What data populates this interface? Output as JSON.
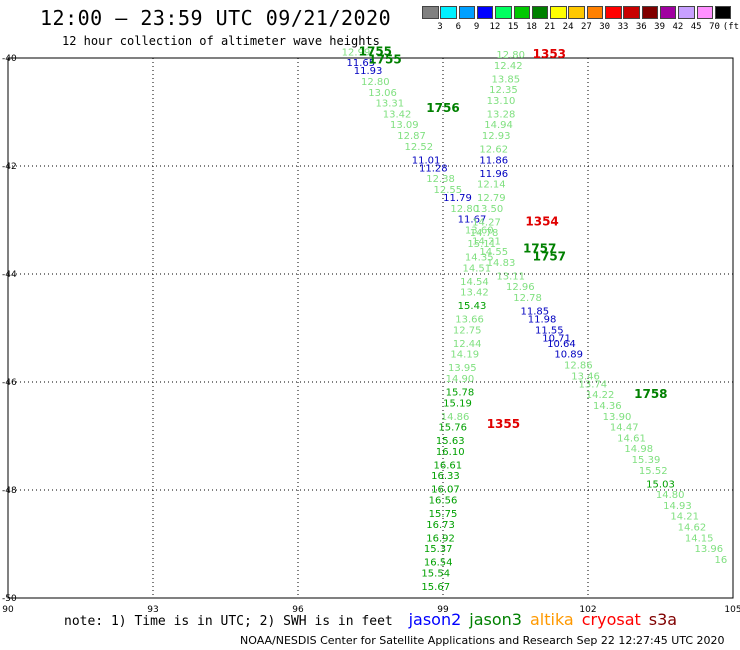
{
  "title": "12:00 — 23:59 UTC 09/21/2020",
  "subtitle": "12 hour collection of altimeter wave heights",
  "colorbar": {
    "labels": [
      "3",
      "6",
      "9",
      "12",
      "15",
      "18",
      "21",
      "24",
      "27",
      "30",
      "33",
      "36",
      "39",
      "42",
      "45",
      "70",
      "(ft)"
    ],
    "colors": [
      "#808080",
      "#00f0ff",
      "#00a0ff",
      "#0000ff",
      "#00ff60",
      "#00c800",
      "#008000",
      "#ffff00",
      "#ffc800",
      "#ff8000",
      "#ff0000",
      "#c80000",
      "#800000",
      "#a000a0",
      "#c8a0ff",
      "#ff90ff",
      "#000000"
    ]
  },
  "map": {
    "lon_labels": [
      "90",
      "93",
      "96",
      "99",
      "102",
      "105"
    ],
    "lat_labels": [
      "-40",
      "-42",
      "-44",
      "-46",
      "-48",
      "-50"
    ],
    "grid": true,
    "extent": {
      "lon": [
        90,
        105
      ],
      "lat": [
        -50,
        -40
      ]
    },
    "swh_colors": {
      "light_green": "#80e080",
      "green": "#00a000",
      "dark_blue": "#0000c0",
      "red": "#e00000",
      "dark_green": "#008000"
    }
  },
  "tracks": [
    {
      "satellite": "jason3",
      "time_labels": [
        {
          "text": "1755",
          "lon": 97.6,
          "lat": -39.95,
          "color": "#008000"
        },
        {
          "text": "1755",
          "lon": 97.8,
          "lat": -40.1,
          "color": "#008000"
        },
        {
          "text": "1756",
          "lon": 99.0,
          "lat": -41.0,
          "color": "#008000"
        },
        {
          "text": "1757",
          "lon": 101.0,
          "lat": -43.6,
          "color": "#008000"
        },
        {
          "text": "1757",
          "lon": 101.2,
          "lat": -43.75,
          "color": "#008000"
        },
        {
          "text": "1758",
          "lon": 103.3,
          "lat": -46.3,
          "color": "#008000"
        }
      ],
      "swh": [
        {
          "v": "12.99",
          "lon": 97.2,
          "lat": -39.95,
          "c": "#80e080"
        },
        {
          "v": "11.65",
          "lon": 97.3,
          "lat": -40.15,
          "c": "#0000c0"
        },
        {
          "v": "11.93",
          "lon": 97.45,
          "lat": -40.3,
          "c": "#0000c0"
        },
        {
          "v": "12.80",
          "lon": 97.6,
          "lat": -40.5,
          "c": "#80e080"
        },
        {
          "v": "13.06",
          "lon": 97.75,
          "lat": -40.7,
          "c": "#80e080"
        },
        {
          "v": "13.31",
          "lon": 97.9,
          "lat": -40.9,
          "c": "#80e080"
        },
        {
          "v": "13.42",
          "lon": 98.05,
          "lat": -41.1,
          "c": "#80e080"
        },
        {
          "v": "13.09",
          "lon": 98.2,
          "lat": -41.3,
          "c": "#80e080"
        },
        {
          "v": "12.87",
          "lon": 98.35,
          "lat": -41.5,
          "c": "#80e080"
        },
        {
          "v": "12.52",
          "lon": 98.5,
          "lat": -41.7,
          "c": "#80e080"
        },
        {
          "v": "11.01",
          "lon": 98.65,
          "lat": -41.95,
          "c": "#0000c0"
        },
        {
          "v": "11.28",
          "lon": 98.8,
          "lat": -42.1,
          "c": "#0000c0"
        },
        {
          "v": "12.38",
          "lon": 98.95,
          "lat": -42.3,
          "c": "#80e080"
        },
        {
          "v": "12.55",
          "lon": 99.1,
          "lat": -42.5,
          "c": "#80e080"
        },
        {
          "v": "11.79",
          "lon": 99.3,
          "lat": -42.65,
          "c": "#0000c0"
        },
        {
          "v": "12.80",
          "lon": 99.45,
          "lat": -42.85,
          "c": "#80e080"
        },
        {
          "v": "11.67",
          "lon": 99.6,
          "lat": -43.05,
          "c": "#0000c0"
        },
        {
          "v": "13.60",
          "lon": 99.75,
          "lat": -43.25,
          "c": "#80e080"
        },
        {
          "v": "14.21",
          "lon": 99.9,
          "lat": -43.45,
          "c": "#80e080"
        },
        {
          "v": "14.55",
          "lon": 100.05,
          "lat": -43.65,
          "c": "#80e080"
        },
        {
          "v": "14.83",
          "lon": 100.2,
          "lat": -43.85,
          "c": "#80e080"
        },
        {
          "v": "13.11",
          "lon": 100.4,
          "lat": -44.1,
          "c": "#80e080"
        },
        {
          "v": "12.96",
          "lon": 100.6,
          "lat": -44.3,
          "c": "#80e080"
        },
        {
          "v": "12.78",
          "lon": 100.75,
          "lat": -44.5,
          "c": "#80e080"
        },
        {
          "v": "11.85",
          "lon": 100.9,
          "lat": -44.75,
          "c": "#0000c0"
        },
        {
          "v": "11.98",
          "lon": 101.05,
          "lat": -44.9,
          "c": "#0000c0"
        },
        {
          "v": "11.55",
          "lon": 101.2,
          "lat": -45.1,
          "c": "#0000c0"
        },
        {
          "v": "10.71",
          "lon": 101.35,
          "lat": -45.25,
          "c": "#0000c0"
        },
        {
          "v": "10.64",
          "lon": 101.45,
          "lat": -45.35,
          "c": "#0000c0"
        },
        {
          "v": "10.89",
          "lon": 101.6,
          "lat": -45.55,
          "c": "#0000c0"
        },
        {
          "v": "12.86",
          "lon": 101.8,
          "lat": -45.75,
          "c": "#80e080"
        },
        {
          "v": "13.46",
          "lon": 101.95,
          "lat": -45.95,
          "c": "#80e080"
        },
        {
          "v": "13.74",
          "lon": 102.1,
          "lat": -46.1,
          "c": "#80e080"
        },
        {
          "v": "14.22",
          "lon": 102.25,
          "lat": -46.3,
          "c": "#80e080"
        },
        {
          "v": "14.36",
          "lon": 102.4,
          "lat": -46.5,
          "c": "#80e080"
        },
        {
          "v": "13.90",
          "lon": 102.6,
          "lat": -46.7,
          "c": "#80e080"
        },
        {
          "v": "14.47",
          "lon": 102.75,
          "lat": -46.9,
          "c": "#80e080"
        },
        {
          "v": "14.61",
          "lon": 102.9,
          "lat": -47.1,
          "c": "#80e080"
        },
        {
          "v": "14.98",
          "lon": 103.05,
          "lat": -47.3,
          "c": "#80e080"
        },
        {
          "v": "15.39",
          "lon": 103.2,
          "lat": -47.5,
          "c": "#80e080"
        },
        {
          "v": "15.52",
          "lon": 103.35,
          "lat": -47.7,
          "c": "#80e080"
        },
        {
          "v": "15.03",
          "lon": 103.5,
          "lat": -47.95,
          "c": "#00a000"
        },
        {
          "v": "14.80",
          "lon": 103.7,
          "lat": -48.15,
          "c": "#80e080"
        },
        {
          "v": "14.93",
          "lon": 103.85,
          "lat": -48.35,
          "c": "#80e080"
        },
        {
          "v": "14.21",
          "lon": 104.0,
          "lat": -48.55,
          "c": "#80e080"
        },
        {
          "v": "14.62",
          "lon": 104.15,
          "lat": -48.75,
          "c": "#80e080"
        },
        {
          "v": "14.15",
          "lon": 104.3,
          "lat": -48.95,
          "c": "#80e080"
        },
        {
          "v": "13.96",
          "lon": 104.5,
          "lat": -49.15,
          "c": "#80e080"
        },
        {
          "v": "16",
          "lon": 104.75,
          "lat": -49.35,
          "c": "#80e080"
        }
      ]
    },
    {
      "satellite": "cryosat",
      "time_labels": [
        {
          "text": "1353",
          "lon": 101.2,
          "lat": -40.0,
          "color": "#e00000"
        },
        {
          "text": "1354",
          "lon": 101.05,
          "lat": -43.1,
          "color": "#e00000"
        },
        {
          "text": "1355",
          "lon": 100.25,
          "lat": -46.85,
          "color": "#e00000"
        }
      ],
      "swh": [
        {
          "v": "12.80",
          "lon": 100.4,
          "lat": -40.0,
          "c": "#80e080"
        },
        {
          "v": "12.42",
          "lon": 100.35,
          "lat": -40.2,
          "c": "#80e080"
        },
        {
          "v": "13.85",
          "lon": 100.3,
          "lat": -40.45,
          "c": "#80e080"
        },
        {
          "v": "12.35",
          "lon": 100.25,
          "lat": -40.65,
          "c": "#80e080"
        },
        {
          "v": "13.10",
          "lon": 100.2,
          "lat": -40.85,
          "c": "#80e080"
        },
        {
          "v": "13.28",
          "lon": 100.2,
          "lat": -41.1,
          "c": "#80e080"
        },
        {
          "v": "14.94",
          "lon": 100.15,
          "lat": -41.3,
          "c": "#80e080"
        },
        {
          "v": "12.93",
          "lon": 100.1,
          "lat": -41.5,
          "c": "#80e080"
        },
        {
          "v": "12.62",
          "lon": 100.05,
          "lat": -41.75,
          "c": "#80e080"
        },
        {
          "v": "11.86",
          "lon": 100.05,
          "lat": -41.95,
          "c": "#0000c0"
        },
        {
          "v": "11.96",
          "lon": 100.05,
          "lat": -42.2,
          "c": "#0000c0"
        },
        {
          "v": "12.14",
          "lon": 100.0,
          "lat": -42.4,
          "c": "#80e080"
        },
        {
          "v": "12.79",
          "lon": 100.0,
          "lat": -42.65,
          "c": "#80e080"
        },
        {
          "v": "13.50",
          "lon": 99.95,
          "lat": -42.85,
          "c": "#80e080"
        },
        {
          "v": "14.27",
          "lon": 99.9,
          "lat": -43.1,
          "c": "#80e080"
        },
        {
          "v": "14.78",
          "lon": 99.85,
          "lat": -43.3,
          "c": "#80e080"
        },
        {
          "v": "15.11",
          "lon": 99.8,
          "lat": -43.5,
          "c": "#80e080"
        },
        {
          "v": "14.35",
          "lon": 99.75,
          "lat": -43.75,
          "c": "#80e080"
        },
        {
          "v": "14.51",
          "lon": 99.7,
          "lat": -43.95,
          "c": "#80e080"
        },
        {
          "v": "14.54",
          "lon": 99.65,
          "lat": -44.2,
          "c": "#80e080"
        },
        {
          "v": "13.42",
          "lon": 99.65,
          "lat": -44.4,
          "c": "#80e080"
        },
        {
          "v": "15.43",
          "lon": 99.6,
          "lat": -44.65,
          "c": "#00a000"
        },
        {
          "v": "13.66",
          "lon": 99.55,
          "lat": -44.9,
          "c": "#80e080"
        },
        {
          "v": "12.75",
          "lon": 99.5,
          "lat": -45.1,
          "c": "#80e080"
        },
        {
          "v": "12.44",
          "lon": 99.5,
          "lat": -45.35,
          "c": "#80e080"
        },
        {
          "v": "14.19",
          "lon": 99.45,
          "lat": -45.55,
          "c": "#80e080"
        },
        {
          "v": "13.95",
          "lon": 99.4,
          "lat": -45.8,
          "c": "#80e080"
        },
        {
          "v": "14.90",
          "lon": 99.35,
          "lat": -46.0,
          "c": "#80e080"
        },
        {
          "v": "15.78",
          "lon": 99.35,
          "lat": -46.25,
          "c": "#00a000"
        },
        {
          "v": "15.19",
          "lon": 99.3,
          "lat": -46.45,
          "c": "#00a000"
        },
        {
          "v": "14.86",
          "lon": 99.25,
          "lat": -46.7,
          "c": "#80e080"
        },
        {
          "v": "15.76",
          "lon": 99.2,
          "lat": -46.9,
          "c": "#00a000"
        },
        {
          "v": "15.63",
          "lon": 99.15,
          "lat": -47.15,
          "c": "#00a000"
        },
        {
          "v": "16.10",
          "lon": 99.15,
          "lat": -47.35,
          "c": "#00a000"
        },
        {
          "v": "16.61",
          "lon": 99.1,
          "lat": -47.6,
          "c": "#00a000"
        },
        {
          "v": "16.33",
          "lon": 99.05,
          "lat": -47.8,
          "c": "#00a000"
        },
        {
          "v": "16.07",
          "lon": 99.05,
          "lat": -48.05,
          "c": "#00a000"
        },
        {
          "v": "16.56",
          "lon": 99.0,
          "lat": -48.25,
          "c": "#00a000"
        },
        {
          "v": "15.75",
          "lon": 99.0,
          "lat": -48.5,
          "c": "#00a000"
        },
        {
          "v": "16.73",
          "lon": 98.95,
          "lat": -48.7,
          "c": "#00a000"
        },
        {
          "v": "16.92",
          "lon": 98.95,
          "lat": -48.95,
          "c": "#00a000"
        },
        {
          "v": "15.37",
          "lon": 98.9,
          "lat": -49.15,
          "c": "#00a000"
        },
        {
          "v": "16.54",
          "lon": 98.9,
          "lat": -49.4,
          "c": "#00a000"
        },
        {
          "v": "15.54",
          "lon": 98.85,
          "lat": -49.6,
          "c": "#00a000"
        },
        {
          "v": "15.67",
          "lon": 98.85,
          "lat": -49.85,
          "c": "#00a000"
        }
      ]
    }
  ],
  "notes": {
    "text": "note: 1) Time is in UTC; 2) SWH is in feet",
    "satellites": [
      {
        "name": "jason2",
        "color": "#0000ff"
      },
      {
        "name": "jason3",
        "color": "#008000"
      },
      {
        "name": "altika",
        "color": "#ff9900"
      },
      {
        "name": "cryosat",
        "color": "#ff0000"
      },
      {
        "name": "s3a",
        "color": "#800000"
      }
    ]
  },
  "credit": "NOAA/NESDIS Center for Satellite Applications and Research    Sep 22 12:27:45 UTC 2020"
}
